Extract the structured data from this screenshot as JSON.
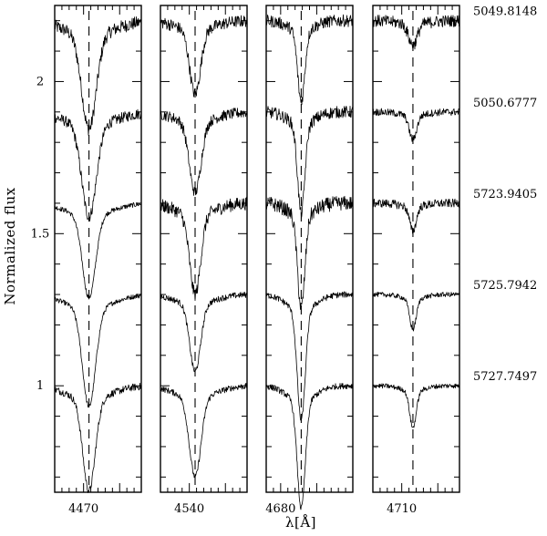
{
  "chart_data": {
    "type": "line",
    "title": "",
    "xlabel": "λ[Å]",
    "ylabel": "Normalized flux",
    "ylim": [
      0.65,
      2.25
    ],
    "y_ticks": [
      1,
      1.5,
      2
    ],
    "y_tick_labels": [
      "1",
      "1.5",
      "2"
    ],
    "grid": false,
    "legend": "none",
    "epochs": [
      "5049.8148",
      "5050.6777",
      "5723.9405",
      "5725.7942",
      "5727.7497"
    ],
    "continuum_levels": [
      2.2,
      1.9,
      1.6,
      1.3,
      1.0
    ],
    "panels": [
      {
        "x_tick_label": "4470",
        "line_center": 4471.5,
        "xlim": [
          4462,
          4486
        ],
        "depths": [
          0.31,
          0.3,
          0.27,
          0.32,
          0.3
        ],
        "widths": [
          2.0,
          2.0,
          1.8,
          1.8,
          1.7
        ],
        "noise": [
          0.022,
          0.018,
          0.008,
          0.008,
          0.012
        ]
      },
      {
        "x_tick_label": "4540",
        "line_center": 4541.6,
        "xlim": [
          4532,
          4556
        ],
        "depths": [
          0.21,
          0.23,
          0.26,
          0.22,
          0.26
        ],
        "widths": [
          1.5,
          1.6,
          1.5,
          1.5,
          1.6
        ],
        "noise": [
          0.02,
          0.018,
          0.022,
          0.01,
          0.01
        ]
      },
      {
        "x_tick_label": "4680",
        "line_center": 4685.7,
        "xlim": [
          4676,
          4700
        ],
        "depths": [
          0.23,
          0.29,
          0.3,
          0.36,
          0.35
        ],
        "widths": [
          1.0,
          1.0,
          1.0,
          1.1,
          1.1
        ],
        "noise": [
          0.02,
          0.02,
          0.024,
          0.01,
          0.01
        ]
      },
      {
        "x_tick_label": "4710",
        "line_center": 4713.1,
        "xlim": [
          4702,
          4726
        ],
        "depths": [
          0.07,
          0.08,
          0.08,
          0.1,
          0.12
        ],
        "widths": [
          1.2,
          1.0,
          0.9,
          0.9,
          0.9
        ],
        "noise": [
          0.02,
          0.012,
          0.014,
          0.008,
          0.008
        ]
      }
    ]
  }
}
